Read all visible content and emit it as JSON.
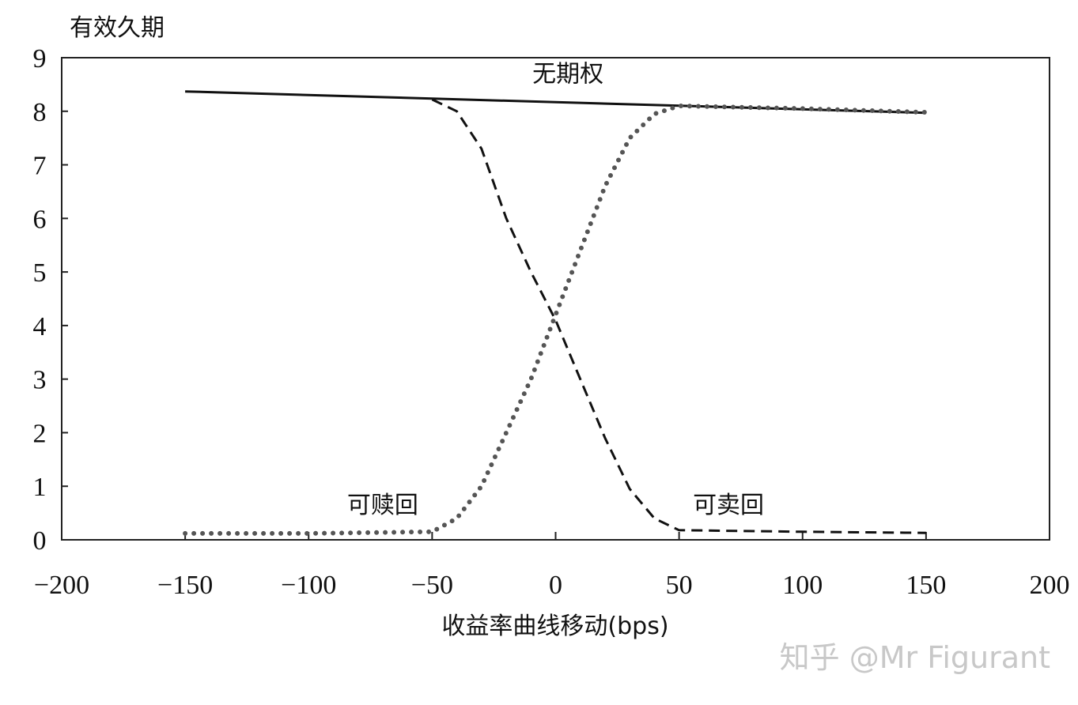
{
  "chart_data": {
    "type": "line",
    "title": "",
    "xlabel": "收益率曲线移动(bps)",
    "ylabel": "有效久期",
    "xlim": [
      -200,
      200
    ],
    "ylim": [
      0,
      9
    ],
    "xticks": [
      -200,
      -150,
      -100,
      -50,
      0,
      50,
      100,
      150,
      200
    ],
    "xtick_labels": [
      "−200",
      "−150",
      "−100",
      "−50",
      "0",
      "50",
      "100",
      "150",
      "200"
    ],
    "yticks": [
      0,
      1,
      2,
      3,
      4,
      5,
      6,
      7,
      8,
      9
    ],
    "ytick_labels": [
      "0",
      "1",
      "2",
      "3",
      "4",
      "5",
      "6",
      "7",
      "8",
      "9"
    ],
    "grid": false,
    "series": [
      {
        "name": "无期权",
        "style": "solid",
        "color": "#111111",
        "x": [
          -150,
          150
        ],
        "y": [
          8.37,
          7.97
        ]
      },
      {
        "name": "可卖回",
        "style": "dashed",
        "color": "#111111",
        "x": [
          -50,
          -40,
          -30,
          -20,
          -10,
          0,
          10,
          20,
          30,
          40,
          50,
          100,
          150
        ],
        "y": [
          8.22,
          8.0,
          7.3,
          6.0,
          5.0,
          4.1,
          3.0,
          1.9,
          0.95,
          0.4,
          0.18,
          0.15,
          0.13
        ]
      },
      {
        "name": "可赎回",
        "style": "dotted",
        "color": "#555555",
        "x": [
          -150,
          -100,
          -50,
          -40,
          -30,
          -20,
          -10,
          0,
          10,
          20,
          30,
          40,
          50,
          100,
          150
        ],
        "y": [
          0.12,
          0.12,
          0.15,
          0.4,
          1.0,
          2.0,
          3.0,
          4.2,
          5.4,
          6.6,
          7.5,
          7.95,
          8.1,
          8.05,
          7.98
        ]
      }
    ],
    "annotations": [
      {
        "text": "无期权",
        "x": 5,
        "y": 8.55
      },
      {
        "text": "可赎回",
        "x": -70,
        "y": 0.5
      },
      {
        "text": "可卖回",
        "x": 70,
        "y": 0.5
      }
    ]
  },
  "watermark": "知乎 @Mr Figurant"
}
